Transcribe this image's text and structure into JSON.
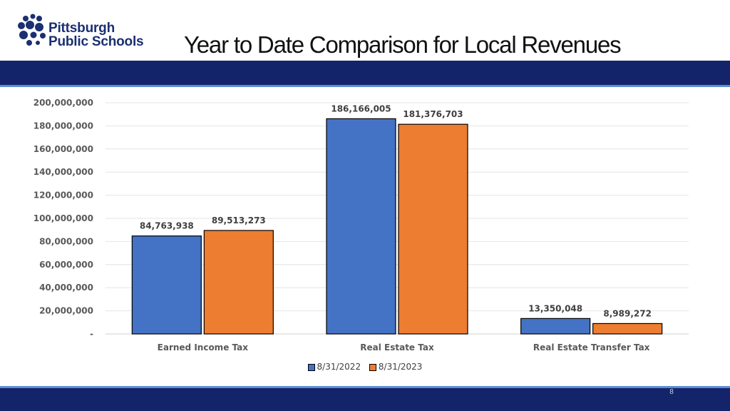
{
  "header": {
    "logo_line1": "Pittsburgh",
    "logo_line2": "Public Schools",
    "title": "Year to Date Comparison for Local Revenues"
  },
  "footer": {
    "page_number": "8"
  },
  "colors": {
    "series1": "#4472c4",
    "series2": "#ed7d31",
    "band": "#14246b",
    "accent": "#5b8ed0"
  },
  "chart_data": {
    "type": "bar",
    "title": "",
    "xlabel": "",
    "ylabel": "",
    "categories": [
      "Earned Income Tax",
      "Real Estate Tax",
      "Real Estate Transfer Tax"
    ],
    "series": [
      {
        "name": "8/31/2022",
        "values": [
          84763938,
          186166005,
          13350048
        ],
        "labels": [
          "84,763,938",
          "186,166,005",
          "13,350,048"
        ]
      },
      {
        "name": "8/31/2023",
        "values": [
          89513273,
          181376703,
          8989272
        ],
        "labels": [
          "89,513,273",
          "181,376,703",
          "8,989,272"
        ]
      }
    ],
    "ylim": [
      0,
      200000000
    ],
    "yticks": [
      0,
      20000000,
      40000000,
      60000000,
      80000000,
      100000000,
      120000000,
      140000000,
      160000000,
      180000000,
      200000000
    ],
    "ytick_labels": [
      "-",
      "20,000,000",
      "40,000,000",
      "60,000,000",
      "80,000,000",
      "100,000,000",
      "120,000,000",
      "140,000,000",
      "160,000,000",
      "180,000,000",
      "200,000,000"
    ],
    "grid": true,
    "legend_position": "bottom"
  }
}
